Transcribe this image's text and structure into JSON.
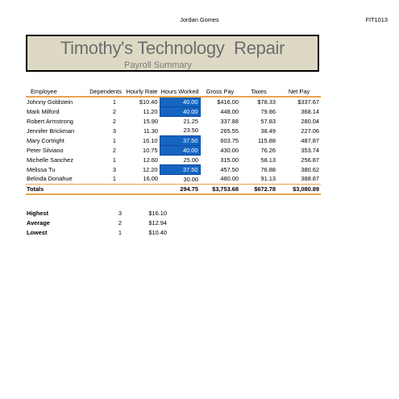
{
  "header": {
    "center": "Jordan Gomes",
    "right": "FIT1013"
  },
  "title": {
    "main": "Timothy's Technology  Repair",
    "sub": "Payroll Summary"
  },
  "table": {
    "headers": [
      "Employee",
      "Dependents",
      "Hourly Rate",
      "Hours Worked",
      "Gross Pay",
      "Taxes",
      "Net Pay"
    ],
    "rows": [
      {
        "name": "Johnny Goldstein",
        "dependents": "1",
        "rate": "$10.40",
        "hours": "40.00",
        "hours_highlight": true,
        "gross": "$416.00",
        "taxes": "$78.33",
        "net": "$337.67"
      },
      {
        "name": "Mark Milford",
        "dependents": "2",
        "rate": "11.20",
        "hours": "40.00",
        "hours_highlight": true,
        "gross": "448.00",
        "taxes": "79.86",
        "net": "368.14"
      },
      {
        "name": "Robert Armstrong",
        "dependents": "2",
        "rate": "15.90",
        "hours": "21.25",
        "hours_highlight": false,
        "gross": "337.88",
        "taxes": "57.83",
        "net": "280.04"
      },
      {
        "name": "Jennifer Brickman",
        "dependents": "3",
        "rate": "11.30",
        "hours": "23.50",
        "hours_highlight": false,
        "gross": "265.55",
        "taxes": "38.49",
        "net": "227.06"
      },
      {
        "name": "Mary Cortright",
        "dependents": "1",
        "rate": "16.10",
        "hours": "37.50",
        "hours_highlight": true,
        "gross": "603.75",
        "taxes": "115.88",
        "net": "487.87"
      },
      {
        "name": "Peter Silviano",
        "dependents": "2",
        "rate": "10.75",
        "hours": "40.00",
        "hours_highlight": true,
        "gross": "430.00",
        "taxes": "76.26",
        "net": "353.74"
      },
      {
        "name": "Michelle Sanchez",
        "dependents": "1",
        "rate": "12.60",
        "hours": "25.00",
        "hours_highlight": false,
        "gross": "315.00",
        "taxes": "58.13",
        "net": "256.87"
      },
      {
        "name": "Melissa Tu",
        "dependents": "3",
        "rate": "12.20",
        "hours": "37.50",
        "hours_highlight": true,
        "gross": "457.50",
        "taxes": "76.88",
        "net": "380.62"
      },
      {
        "name": "Belinda Donahue",
        "dependents": "1",
        "rate": "16.00",
        "hours": "30.00",
        "hours_highlight": false,
        "gross": "480.00",
        "taxes": "91.13",
        "net": "388.87"
      }
    ],
    "totals": {
      "label": "Totals",
      "hours": "294.75",
      "gross": "$3,753.68",
      "taxes": "$672.78",
      "net": "$3,080.89"
    }
  },
  "stats": [
    {
      "label": "Highest",
      "dependents": "3",
      "rate": "$16.10"
    },
    {
      "label": "Average",
      "dependents": "2",
      "rate": "$12.94"
    },
    {
      "label": "Lowest",
      "dependents": "1",
      "rate": "$10.40"
    }
  ],
  "colors": {
    "title_bg": "#ddd9c4",
    "highlight": "#1565c0",
    "rule": "#e8a44c"
  }
}
